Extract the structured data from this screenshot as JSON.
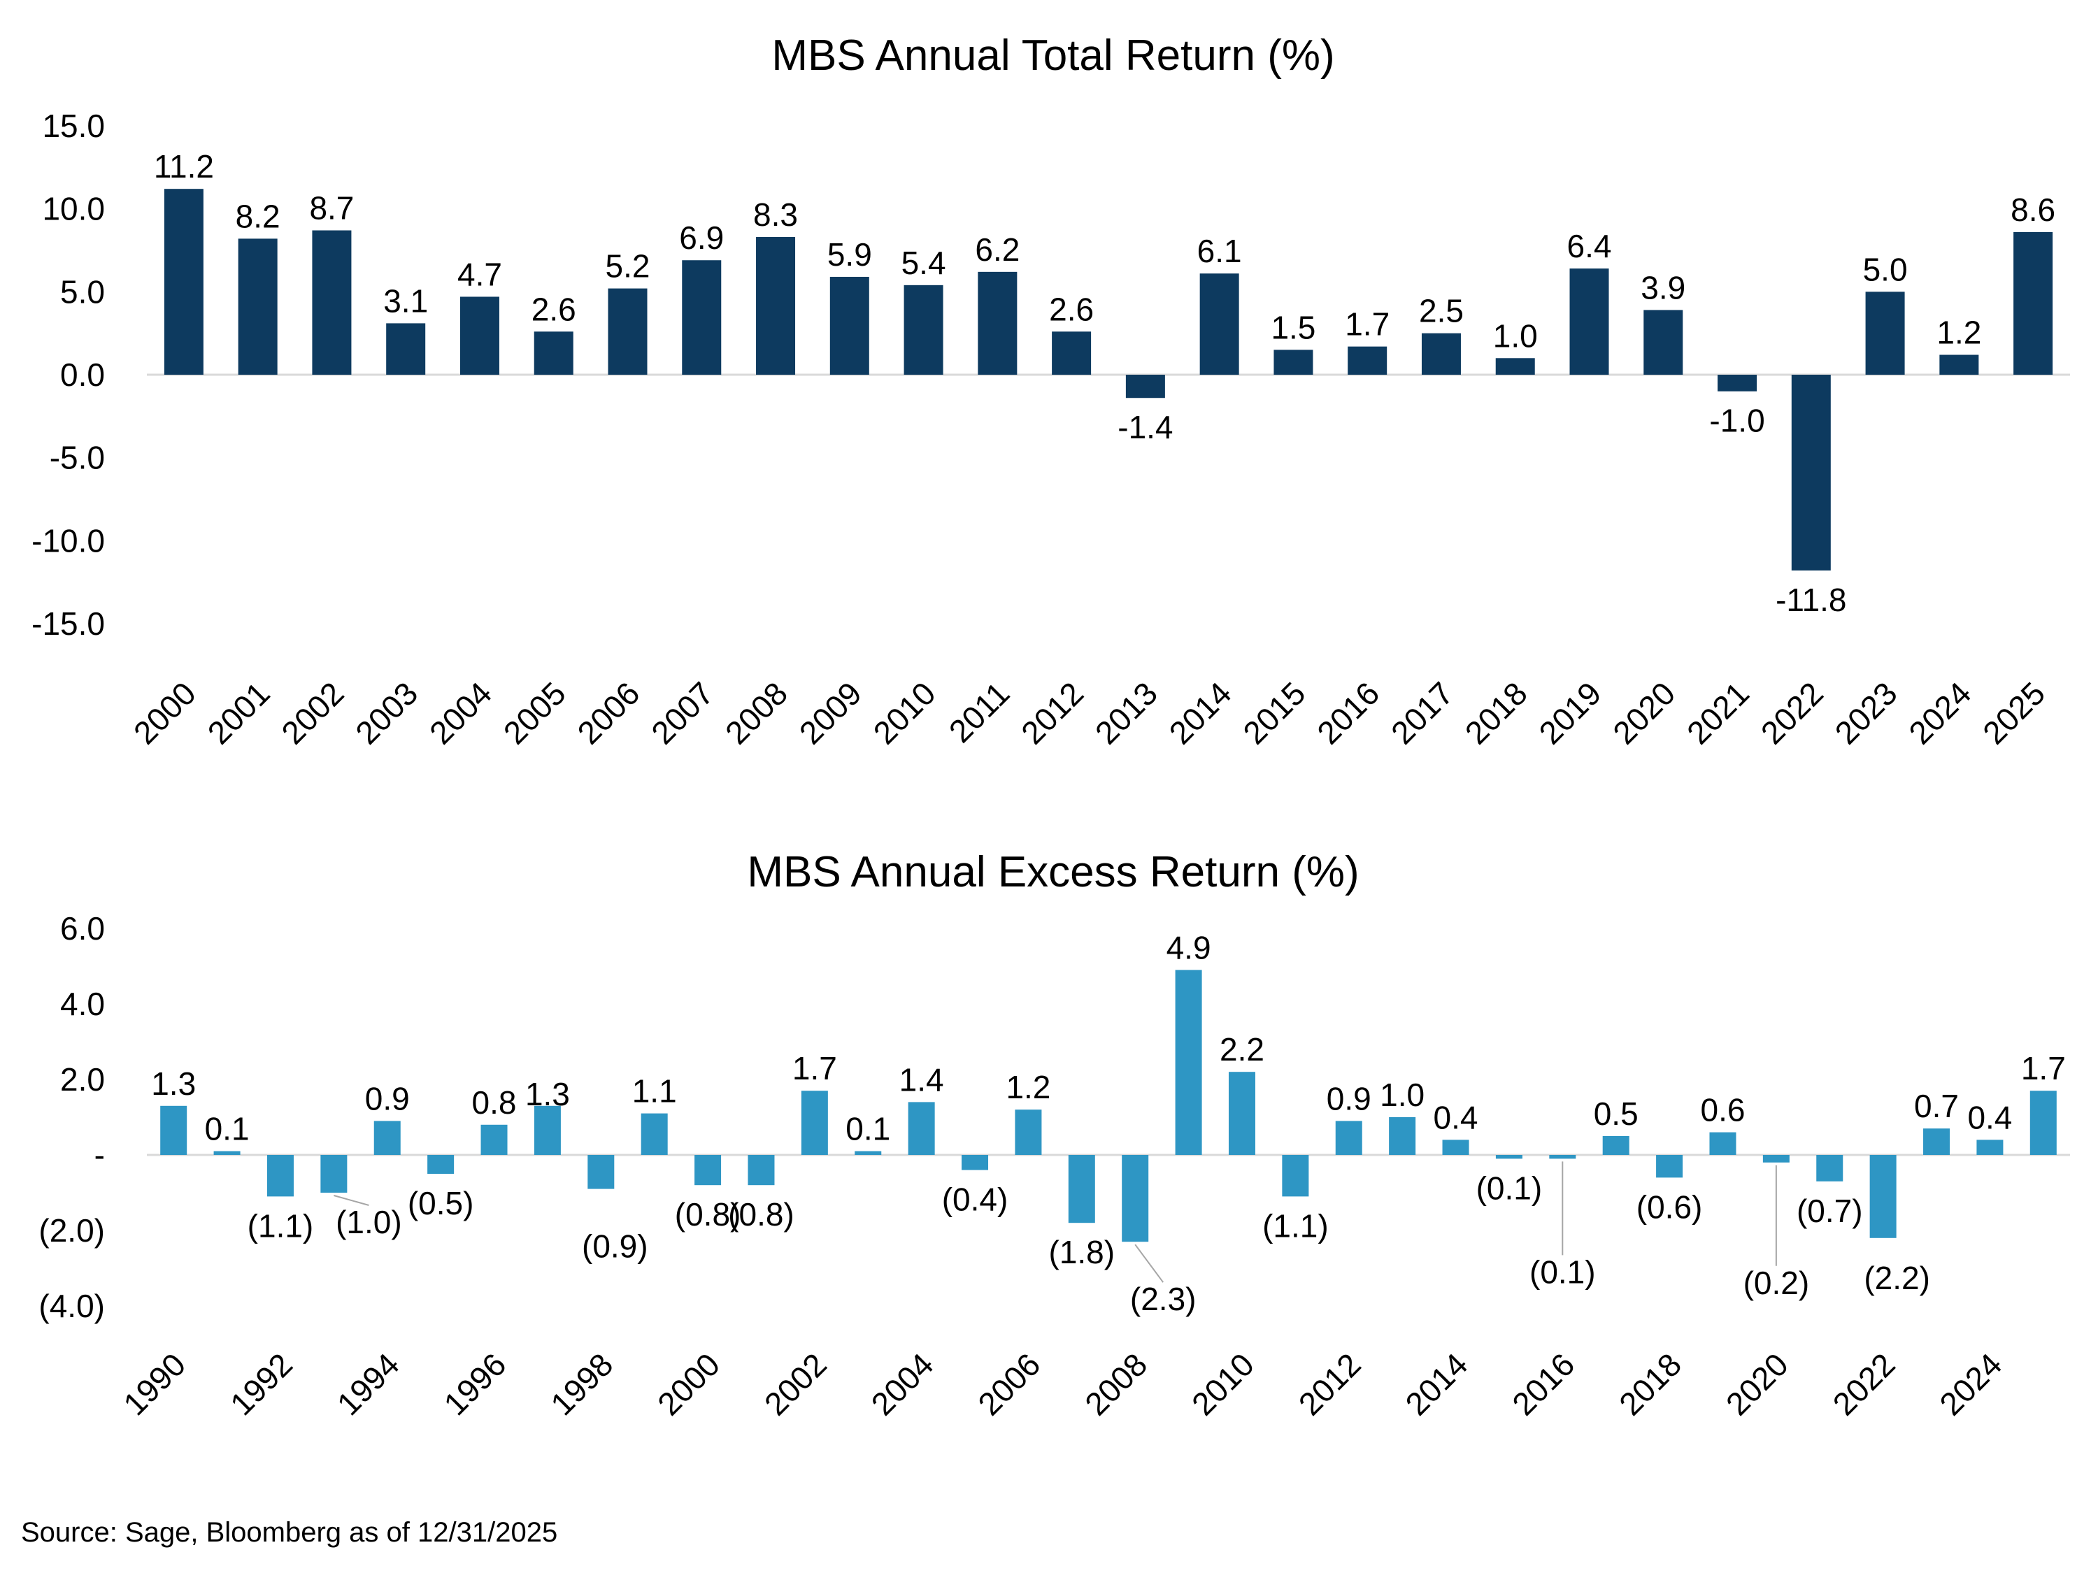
{
  "source_note": "Source: Sage, Bloomberg as of 12/31/2025",
  "chart_data": [
    {
      "type": "bar",
      "title": "MBS Annual Total Return (%)",
      "xlabel": "",
      "ylabel": "",
      "color": "#0d3a5f",
      "ylim": [
        -15,
        15
      ],
      "y_ticks": [
        15,
        10,
        5,
        0,
        -5,
        -10,
        -15
      ],
      "y_tick_labels": [
        "15.0",
        "10.0",
        "5.0",
        "0.0",
        "-5.0",
        "-10.0",
        "-15.0"
      ],
      "categories": [
        "2000",
        "2001",
        "2002",
        "2003",
        "2004",
        "2005",
        "2006",
        "2007",
        "2008",
        "2009",
        "2010",
        "2011",
        "2012",
        "2013",
        "2014",
        "2015",
        "2016",
        "2017",
        "2018",
        "2019",
        "2020",
        "2021",
        "2022",
        "2023",
        "2024",
        "2025"
      ],
      "x_tick_labels": [
        "2000",
        "2001",
        "2002",
        "2003",
        "2004",
        "2005",
        "2006",
        "2007",
        "2008",
        "2009",
        "2010",
        "2011",
        "2012",
        "2013",
        "2014",
        "2015",
        "2016",
        "2017",
        "2018",
        "2019",
        "2020",
        "2021",
        "2022",
        "2023",
        "2024",
        "2025"
      ],
      "values": [
        11.2,
        8.2,
        8.7,
        3.1,
        4.7,
        2.6,
        5.2,
        6.9,
        8.3,
        5.9,
        5.4,
        6.2,
        2.6,
        -1.4,
        6.1,
        1.5,
        1.7,
        2.5,
        1.0,
        6.4,
        3.9,
        -1.0,
        -11.8,
        5.0,
        1.2,
        8.6
      ],
      "data_labels": [
        "11.2",
        "8.2",
        "8.7",
        "3.1",
        "4.7",
        "2.6",
        "5.2",
        "6.9",
        "8.3",
        "5.9",
        "5.4",
        "6.2",
        "2.6",
        "-1.4",
        "6.1",
        "1.5",
        "1.7",
        "2.5",
        "1.0",
        "6.4",
        "3.9",
        "-1.0",
        "-11.8",
        "5.0",
        "1.2",
        "8.6"
      ],
      "grid": false
    },
    {
      "type": "bar",
      "title": "MBS Annual Excess Return (%)",
      "xlabel": "",
      "ylabel": "",
      "color": "#2e96c4",
      "ylim": [
        -4,
        6
      ],
      "y_ticks": [
        6,
        4,
        2,
        0,
        -2,
        -4
      ],
      "y_tick_labels": [
        "6.0",
        "4.0",
        "2.0",
        "-",
        "(2.0)",
        "(4.0)"
      ],
      "categories": [
        "1990",
        "1991",
        "1992",
        "1993",
        "1994",
        "1995",
        "1996",
        "1997",
        "1998",
        "1999",
        "2000",
        "2001",
        "2002",
        "2003",
        "2004",
        "2005",
        "2006",
        "2007",
        "2008",
        "2009",
        "2010",
        "2011",
        "2012",
        "2013",
        "2014",
        "2015",
        "2016",
        "2017",
        "2018",
        "2019",
        "2020",
        "2021",
        "2022",
        "2023",
        "2024",
        "2025"
      ],
      "x_tick_labels": [
        "1990",
        "1992",
        "1994",
        "1996",
        "1998",
        "2000",
        "2002",
        "2004",
        "2006",
        "2008",
        "2010",
        "2012",
        "2014",
        "2016",
        "2018",
        "2020",
        "2022",
        "2024"
      ],
      "values": [
        1.3,
        0.1,
        -1.1,
        -1.0,
        0.9,
        -0.5,
        0.8,
        1.3,
        -0.9,
        1.1,
        -0.8,
        -0.8,
        1.7,
        0.1,
        1.4,
        -0.4,
        1.2,
        -1.8,
        -2.3,
        4.9,
        2.2,
        -1.1,
        0.9,
        1.0,
        0.4,
        -0.1,
        -0.1,
        0.5,
        -0.6,
        0.6,
        -0.2,
        -0.7,
        -2.2,
        0.7,
        0.4,
        1.7
      ],
      "data_labels": [
        "1.3",
        "0.1",
        "(1.1)",
        "(1.0)",
        "0.9",
        "(0.5)",
        "0.8",
        "1.3",
        "(0.9)",
        "1.1",
        "(0.8)",
        "(0.8)",
        "1.7",
        "0.1",
        "1.4",
        "(0.4)",
        "1.2",
        "(1.8)",
        "(2.3)",
        "4.9",
        "2.2",
        "(1.1)",
        "0.9",
        "1.0",
        "0.4",
        "(0.1)",
        "(0.1)",
        "0.5",
        "(0.6)",
        "0.6",
        "(0.2)",
        "(0.7)",
        "(2.2)",
        "0.7",
        "0.4",
        "1.7"
      ],
      "grid": false
    }
  ]
}
